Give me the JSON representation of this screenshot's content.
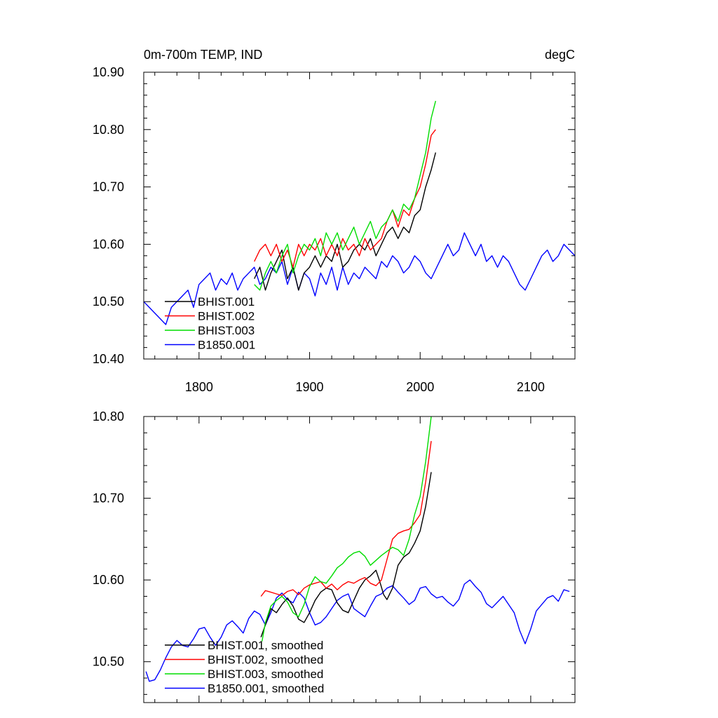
{
  "chart_data": [
    {
      "type": "line",
      "title_left": "0m-700m TEMP, IND",
      "title_right": "degC",
      "xlim": [
        1750,
        2140
      ],
      "ylim": [
        10.4,
        10.9
      ],
      "x_ticks": [
        1800,
        1900,
        2000,
        2100
      ],
      "x_tick_labels": [
        "1800",
        "1900",
        "2000",
        "2100"
      ],
      "y_ticks": [
        10.4,
        10.5,
        10.6,
        10.7,
        10.8,
        10.9
      ],
      "y_tick_labels": [
        "10.40",
        "10.50",
        "10.60",
        "10.70",
        "10.80",
        "10.90"
      ],
      "legend_position": "bottom-left",
      "series": [
        {
          "name": "BHIST.001",
          "color": "#000000",
          "x": [
            1850,
            1855,
            1860,
            1865,
            1870,
            1875,
            1880,
            1885,
            1890,
            1895,
            1900,
            1905,
            1910,
            1915,
            1920,
            1925,
            1930,
            1935,
            1940,
            1945,
            1950,
            1955,
            1960,
            1965,
            1970,
            1975,
            1980,
            1985,
            1990,
            1995,
            2000,
            2005,
            2010,
            2014
          ],
          "values": [
            10.54,
            10.56,
            10.52,
            10.55,
            10.57,
            10.59,
            10.54,
            10.56,
            10.52,
            10.55,
            10.56,
            10.58,
            10.56,
            10.58,
            10.57,
            10.6,
            10.56,
            10.57,
            10.59,
            10.6,
            10.59,
            10.61,
            10.58,
            10.6,
            10.62,
            10.63,
            10.61,
            10.63,
            10.62,
            10.65,
            10.66,
            10.7,
            10.73,
            10.76
          ]
        },
        {
          "name": "BHIST.002",
          "color": "#ff0000",
          "x": [
            1850,
            1855,
            1860,
            1865,
            1870,
            1875,
            1880,
            1885,
            1890,
            1895,
            1900,
            1905,
            1910,
            1915,
            1920,
            1925,
            1930,
            1935,
            1940,
            1945,
            1950,
            1955,
            1960,
            1965,
            1970,
            1975,
            1980,
            1985,
            1990,
            1995,
            2000,
            2005,
            2010,
            2014
          ],
          "values": [
            10.57,
            10.59,
            10.6,
            10.58,
            10.6,
            10.57,
            10.59,
            10.56,
            10.6,
            10.58,
            10.6,
            10.59,
            10.61,
            10.58,
            10.6,
            10.58,
            10.61,
            10.59,
            10.6,
            10.58,
            10.61,
            10.59,
            10.6,
            10.61,
            10.64,
            10.66,
            10.63,
            10.66,
            10.65,
            10.68,
            10.7,
            10.74,
            10.79,
            10.8
          ]
        },
        {
          "name": "BHIST.003",
          "color": "#00dd00",
          "x": [
            1850,
            1855,
            1860,
            1865,
            1870,
            1875,
            1880,
            1885,
            1890,
            1895,
            1900,
            1905,
            1910,
            1915,
            1920,
            1925,
            1930,
            1935,
            1940,
            1945,
            1950,
            1955,
            1960,
            1965,
            1970,
            1975,
            1980,
            1985,
            1990,
            1995,
            2000,
            2005,
            2010,
            2014
          ],
          "values": [
            10.53,
            10.52,
            10.55,
            10.57,
            10.55,
            10.58,
            10.6,
            10.55,
            10.58,
            10.6,
            10.59,
            10.61,
            10.58,
            10.62,
            10.6,
            10.62,
            10.59,
            10.61,
            10.63,
            10.6,
            10.62,
            10.64,
            10.61,
            10.63,
            10.64,
            10.66,
            10.64,
            10.67,
            10.66,
            10.68,
            10.72,
            10.76,
            10.82,
            10.85
          ]
        },
        {
          "name": "B1850.001",
          "color": "#0000ff",
          "x": [
            1750,
            1755,
            1760,
            1765,
            1770,
            1775,
            1780,
            1785,
            1790,
            1795,
            1800,
            1805,
            1810,
            1815,
            1820,
            1825,
            1830,
            1835,
            1840,
            1845,
            1850,
            1855,
            1860,
            1865,
            1870,
            1875,
            1880,
            1885,
            1890,
            1895,
            1900,
            1905,
            1910,
            1915,
            1920,
            1925,
            1930,
            1935,
            1940,
            1945,
            1950,
            1955,
            1960,
            1965,
            1970,
            1975,
            1980,
            1985,
            1990,
            1995,
            2000,
            2005,
            2010,
            2015,
            2020,
            2025,
            2030,
            2035,
            2040,
            2045,
            2050,
            2055,
            2060,
            2065,
            2070,
            2075,
            2080,
            2085,
            2090,
            2095,
            2100,
            2105,
            2110,
            2115,
            2120,
            2125,
            2130,
            2135,
            2140
          ],
          "values": [
            10.5,
            10.49,
            10.48,
            10.47,
            10.46,
            10.49,
            10.5,
            10.51,
            10.52,
            10.49,
            10.53,
            10.54,
            10.55,
            10.52,
            10.54,
            10.53,
            10.55,
            10.52,
            10.54,
            10.55,
            10.56,
            10.53,
            10.54,
            10.56,
            10.55,
            10.57,
            10.53,
            10.56,
            10.52,
            10.55,
            10.54,
            10.51,
            10.55,
            10.53,
            10.56,
            10.52,
            10.56,
            10.53,
            10.55,
            10.54,
            10.56,
            10.55,
            10.54,
            10.57,
            10.56,
            10.58,
            10.57,
            10.55,
            10.56,
            10.58,
            10.57,
            10.55,
            10.54,
            10.56,
            10.58,
            10.6,
            10.58,
            10.59,
            10.62,
            10.6,
            10.58,
            10.6,
            10.57,
            10.58,
            10.56,
            10.58,
            10.57,
            10.55,
            10.53,
            10.52,
            10.54,
            10.56,
            10.58,
            10.59,
            10.57,
            10.58,
            10.6,
            10.59,
            10.58
          ]
        }
      ]
    },
    {
      "type": "line",
      "xlim": [
        1750,
        2140
      ],
      "ylim": [
        10.45,
        10.8
      ],
      "x_ticks": [
        1800,
        1900,
        2000,
        2100
      ],
      "y_ticks": [
        10.5,
        10.6,
        10.7,
        10.8
      ],
      "y_tick_labels": [
        "10.50",
        "10.60",
        "10.70",
        "10.80"
      ],
      "legend_position": "bottom-left",
      "series": [
        {
          "name": "BHIST.001, smoothed",
          "color": "#000000",
          "x": [
            1856,
            1860,
            1865,
            1870,
            1875,
            1880,
            1885,
            1890,
            1895,
            1900,
            1905,
            1910,
            1915,
            1920,
            1925,
            1930,
            1935,
            1940,
            1945,
            1950,
            1955,
            1960,
            1963,
            1967,
            1970,
            1975,
            1980,
            1985,
            1990,
            1995,
            2000,
            2005,
            2010
          ],
          "values": [
            10.53,
            10.545,
            10.565,
            10.56,
            10.57,
            10.578,
            10.568,
            10.552,
            10.548,
            10.56,
            10.575,
            10.585,
            10.59,
            10.588,
            10.572,
            10.563,
            10.56,
            10.575,
            10.59,
            10.6,
            10.605,
            10.612,
            10.6,
            10.582,
            10.576,
            10.59,
            10.618,
            10.628,
            10.633,
            10.645,
            10.66,
            10.69,
            10.732
          ]
        },
        {
          "name": "BHIST.002, smoothed",
          "color": "#ff0000",
          "x": [
            1856,
            1860,
            1865,
            1870,
            1875,
            1880,
            1885,
            1890,
            1895,
            1900,
            1905,
            1910,
            1915,
            1920,
            1925,
            1930,
            1935,
            1940,
            1945,
            1950,
            1955,
            1960,
            1965,
            1970,
            1975,
            1980,
            1985,
            1990,
            1995,
            2000,
            2005,
            2010
          ],
          "values": [
            10.58,
            10.587,
            10.585,
            10.583,
            10.581,
            10.586,
            10.588,
            10.582,
            10.59,
            10.594,
            10.596,
            10.598,
            10.59,
            10.595,
            10.588,
            10.594,
            10.598,
            10.596,
            10.6,
            10.603,
            10.596,
            10.593,
            10.6,
            10.625,
            10.65,
            10.657,
            10.66,
            10.662,
            10.67,
            10.68,
            10.72,
            10.77
          ]
        },
        {
          "name": "BHIST.003, smoothed",
          "color": "#00dd00",
          "x": [
            1857,
            1860,
            1865,
            1870,
            1875,
            1880,
            1885,
            1890,
            1895,
            1900,
            1905,
            1910,
            1915,
            1920,
            1925,
            1930,
            1935,
            1940,
            1945,
            1950,
            1955,
            1960,
            1965,
            1970,
            1975,
            1980,
            1985,
            1990,
            1995,
            2000,
            2005,
            2010
          ],
          "values": [
            10.525,
            10.548,
            10.568,
            10.575,
            10.58,
            10.573,
            10.56,
            10.555,
            10.57,
            10.592,
            10.604,
            10.598,
            10.596,
            10.605,
            10.615,
            10.62,
            10.628,
            10.633,
            10.635,
            10.629,
            10.618,
            10.624,
            10.63,
            10.635,
            10.64,
            10.637,
            10.63,
            10.65,
            10.68,
            10.702,
            10.745,
            10.8
          ]
        },
        {
          "name": "B1850.001, smoothed",
          "color": "#0000ff",
          "x": [
            1752,
            1755,
            1760,
            1765,
            1770,
            1775,
            1780,
            1785,
            1790,
            1795,
            1800,
            1805,
            1810,
            1815,
            1820,
            1825,
            1830,
            1835,
            1840,
            1845,
            1850,
            1855,
            1860,
            1865,
            1870,
            1875,
            1880,
            1885,
            1890,
            1895,
            1900,
            1905,
            1910,
            1915,
            1920,
            1925,
            1930,
            1935,
            1940,
            1945,
            1950,
            1955,
            1960,
            1965,
            1970,
            1975,
            1980,
            1985,
            1990,
            1995,
            2000,
            2005,
            2010,
            2015,
            2020,
            2025,
            2030,
            2035,
            2040,
            2045,
            2050,
            2055,
            2060,
            2065,
            2070,
            2075,
            2080,
            2085,
            2090,
            2095,
            2100,
            2105,
            2110,
            2115,
            2120,
            2125,
            2130,
            2135
          ],
          "values": [
            10.488,
            10.476,
            10.478,
            10.49,
            10.505,
            10.518,
            10.526,
            10.52,
            10.518,
            10.528,
            10.54,
            10.542,
            10.53,
            10.52,
            10.53,
            10.545,
            10.55,
            10.543,
            10.535,
            10.553,
            10.562,
            10.558,
            10.545,
            10.56,
            10.578,
            10.584,
            10.576,
            10.572,
            10.585,
            10.578,
            10.56,
            10.545,
            10.548,
            10.555,
            10.565,
            10.575,
            10.58,
            10.583,
            10.565,
            10.56,
            10.555,
            10.568,
            10.58,
            10.583,
            10.59,
            10.593,
            10.585,
            10.578,
            10.57,
            10.575,
            10.59,
            10.592,
            10.583,
            10.578,
            10.58,
            10.573,
            10.568,
            10.576,
            10.595,
            10.6,
            10.592,
            10.585,
            10.571,
            10.566,
            10.573,
            10.58,
            10.57,
            10.56,
            10.538,
            10.522,
            10.54,
            10.562,
            10.57,
            10.578,
            10.581,
            10.574,
            10.588,
            10.586
          ]
        }
      ]
    }
  ]
}
